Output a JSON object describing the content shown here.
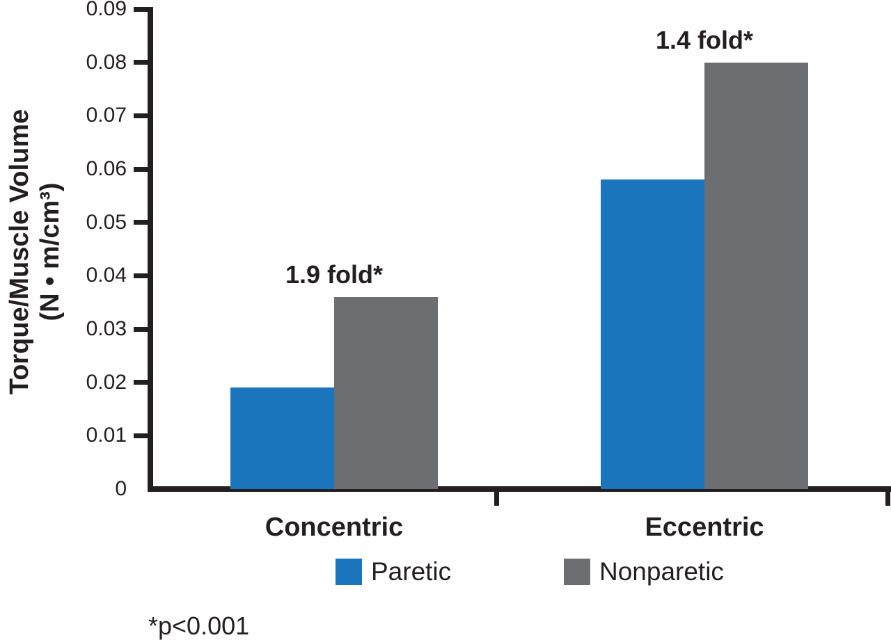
{
  "chart_data": {
    "type": "bar",
    "title": "",
    "categories": [
      "Concentric",
      "Eccentric"
    ],
    "series": [
      {
        "name": "Paretic",
        "color": "#1b75bc",
        "values": [
          0.019,
          0.058
        ]
      },
      {
        "name": "Nonparetic",
        "color": "#6d6e71",
        "values": [
          0.036,
          0.08
        ]
      }
    ],
    "annotations": [
      {
        "category": "Concentric",
        "text": "1.9 fold*"
      },
      {
        "category": "Eccentric",
        "text": "1.4 fold*"
      }
    ],
    "ylabel_line1": "Torque/Muscle Volume",
    "ylabel_line2": "(N • m/cm³)",
    "yticks": [
      "0.09",
      "0.08",
      "0.07",
      "0.06",
      "0.05",
      "0.04",
      "0.03",
      "0.02",
      "0.01",
      "0"
    ],
    "ylim": [
      0,
      0.09
    ],
    "xlabel": "",
    "footnote": "*p<0.001",
    "legend_position": "bottom",
    "grid": false,
    "axis_color": "#231f20"
  }
}
